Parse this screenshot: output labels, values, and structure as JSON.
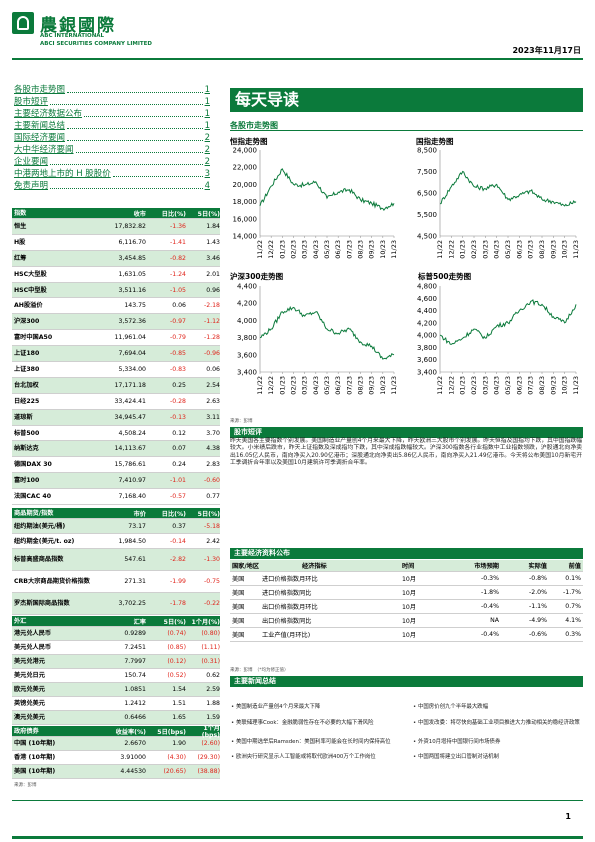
{
  "header": {
    "cn_name": "農銀國際",
    "en_line1": "ABC INTERNATIONAL",
    "en_line2": "ABCI SECURITIES COMPANY LIMITED",
    "date": "2023年11月17日"
  },
  "toc": [
    {
      "label": "各股市走势图",
      "page": "1"
    },
    {
      "label": "股市短评",
      "page": "1"
    },
    {
      "label": "主要经济数据公布",
      "page": "1"
    },
    {
      "label": "主要新闻总结",
      "page": "1"
    },
    {
      "label": "国际经济要闻",
      "page": "2"
    },
    {
      "label": "大中华经济要闻",
      "page": "2"
    },
    {
      "label": "企业要闻",
      "page": "2"
    },
    {
      "label": "中港两地上市的 H 股股价",
      "page": "3"
    },
    {
      "label": "免责声明",
      "page": "4"
    }
  ],
  "main_title": "每天导读",
  "charts_section": "各股市走势图",
  "charts_source": "来源：彭博",
  "commentary_title": "股市短评",
  "commentary": "昨天美国各主要指数个别发展。美国制造业产量创4个月来最大下降，昨天欧洲三大股市个别发展。昨天恒指及国指均下跌，其中国指跌幅较大。小米绩后跌市，昨天上证指数及深成指均下跌，其中深成指跌幅较大。沪深300指数各行业指数中工业指数领跌，沪股通北向净卖出16.05亿人民币，南向净买入20.90亿港币；深股通北向净卖出5.86亿人民币，南向净买入21.49亿港币。今天将公布美国10月新宅开工季调折合年率以及美国10月建筑许可季调折合年率。",
  "index_table": {
    "headers": [
      "指数",
      "收市",
      "日比(%)",
      "5日(%)"
    ],
    "rows": [
      [
        "恒生",
        "17,832.82",
        "-1.36",
        "1.84"
      ],
      [
        "H股",
        "6,116.70",
        "-1.41",
        "1.43"
      ],
      [
        "红筹",
        "3,454.85",
        "-0.82",
        "3.46"
      ],
      [
        "HSC大型股",
        "1,631.05",
        "-1.24",
        "2.01"
      ],
      [
        "HSC中型股",
        "3,511.16",
        "-1.05",
        "0.96"
      ],
      [
        "AH股溢价",
        "143.75",
        "0.06",
        "-2.18"
      ],
      [
        "沪深300",
        "3,572.36",
        "-0.97",
        "-1.12"
      ],
      [
        "富时中国A50",
        "11,961.04",
        "-0.79",
        "-1.28"
      ],
      [
        "上证180",
        "7,694.04",
        "-0.85",
        "-0.96"
      ],
      [
        "上证380",
        "5,334.00",
        "-0.83",
        "0.06"
      ],
      [
        "台北加权",
        "17,171.18",
        "0.25",
        "2.54"
      ],
      [
        "日经225",
        "33,424.41",
        "-0.28",
        "2.63"
      ],
      [
        "道琼斯",
        "34,945.47",
        "-0.13",
        "3.11"
      ],
      [
        "标普500",
        "4,508.24",
        "0.12",
        "3.70"
      ],
      [
        "纳斯达克",
        "14,113.67",
        "0.07",
        "4.38"
      ],
      [
        "德国DAX 30",
        "15,786.61",
        "0.24",
        "2.83"
      ],
      [
        "富时100",
        "7,410.97",
        "-1.01",
        "-0.60"
      ],
      [
        "法国CAC 40",
        "7,168.40",
        "-0.57",
        "0.77"
      ]
    ]
  },
  "commodity_table": {
    "headers": [
      "商品期货/指数",
      "市价",
      "日比(%)",
      "5日(%)"
    ],
    "rows": [
      [
        "纽约期油(美元/桶)",
        "73.17",
        "0.37",
        "-5.18"
      ],
      [
        "纽约期金(美元/t. oz)",
        "1,984.50",
        "-0.14",
        "2.42"
      ],
      [
        "标普高盛商品指数",
        "547.61",
        "-2.82",
        "-1.30"
      ],
      [
        "CRB大宗商品期货价格指数",
        "271.31",
        "-1.99",
        "-0.75"
      ],
      [
        "罗杰斯国际商品指数",
        "3,702.25",
        "-1.78",
        "-0.22"
      ]
    ]
  },
  "fx_table": {
    "headers": [
      "外汇",
      "汇率",
      "5日(%)",
      "1个月(%)"
    ],
    "rows": [
      [
        "港元兑人民币",
        "0.9289",
        "(0.74)",
        "(0.80)"
      ],
      [
        "美元兑人民币",
        "7.2451",
        "(0.85)",
        "(1.11)"
      ],
      [
        "美元兑港元",
        "7.7997",
        "(0.12)",
        "(0.31)"
      ],
      [
        "美元兑日元",
        "150.74",
        "(0.52)",
        "0.62"
      ],
      [
        "欧元兑美元",
        "1.0851",
        "1.54",
        "2.59"
      ],
      [
        "英镑兑美元",
        "1.2412",
        "1.51",
        "1.88"
      ],
      [
        "澳元兑美元",
        "0.6466",
        "1.65",
        "1.59"
      ]
    ]
  },
  "bond_table": {
    "headers": [
      "政府债券",
      "收益率(%)",
      "5日(bps)",
      "1个月(bps)"
    ],
    "rows": [
      [
        "中国 (10年期)",
        "2.6670",
        "1.90",
        "(2.60)"
      ],
      [
        "香港 (10年期)",
        "3.91000",
        "(4.30)",
        "(29.30)"
      ],
      [
        "美国 (10年期)",
        "4.44530",
        "(20.65)",
        "(38.88)"
      ]
    ]
  },
  "table_source": "来源：彭博",
  "econ": {
    "title": "主要经济资料公布",
    "headers": [
      "国家/地区",
      "经济指标",
      "时间",
      "市场预期",
      "实际值",
      "前值"
    ],
    "rows": [
      [
        "美国",
        "进口价格指数月环比",
        "10月",
        "-0.3%",
        "-0.8%",
        "0.1%"
      ],
      [
        "美国",
        "进口价格指数同比",
        "10月",
        "-1.8%",
        "-2.0%",
        "-1.7%"
      ],
      [
        "美国",
        "出口价格指数月环比",
        "10月",
        "-0.4%",
        "-1.1%",
        "0.7%"
      ],
      [
        "美国",
        "出口价格指数同比",
        "10月",
        "NA",
        "-4.9%",
        "4.1%"
      ],
      [
        "美国",
        "工业产值(月环比)",
        "10月",
        "-0.4%",
        "-0.6%",
        "0.3%"
      ]
    ],
    "source": "来源：彭博　（*均为修正值）"
  },
  "news": {
    "title": "主要新闻总结",
    "left": [
      "美国制造业产量创4个月来最大下降",
      "美联储理事Cook：金融脆弱性存在不必要的大幅下滑风险",
      "美国中期选举后Ramsden：美国利率可能会在长时间内保持高位",
      "欧洲央行研究显示人工智能或将取代欧洲400万个工作岗位"
    ],
    "right": [
      "中国房价创九个半年最大跌幅",
      "中国发改委：将尽快向基础工业项目推进大力推动相关的稳经济政策",
      "外资10月增持中国银行间市场债券",
      "中国两国将建立出口管制对话机制"
    ]
  },
  "page_number": "1",
  "chart_data": [
    {
      "type": "line",
      "title": "恒指走势图",
      "x": [
        "11/22",
        "12/22",
        "01/23",
        "02/23",
        "03/23",
        "04/23",
        "05/23",
        "06/23",
        "07/23",
        "08/23",
        "09/23",
        "10/23",
        "11/23"
      ],
      "series": [
        {
          "values": [
            17500,
            19800,
            21800,
            20000,
            19900,
            20300,
            18400,
            19100,
            19400,
            18200,
            17800,
            17200,
            17800
          ]
        }
      ],
      "ylim": [
        14000,
        24000
      ],
      "yticks": [
        14000,
        16000,
        18000,
        20000,
        22000,
        24000
      ],
      "yticklabels": [
        "14,000",
        "16,000",
        "18,000",
        "20,000",
        "22,000",
        "24,000"
      ]
    },
    {
      "type": "line",
      "title": "国指走势图",
      "x": [
        "11/22",
        "12/22",
        "01/23",
        "02/23",
        "03/23",
        "04/23",
        "05/23",
        "06/23",
        "07/23",
        "08/23",
        "09/23",
        "10/23",
        "11/23"
      ],
      "series": [
        {
          "values": [
            6000,
            6800,
            7500,
            6800,
            6700,
            6900,
            6200,
            6400,
            6600,
            6200,
            6100,
            5900,
            6100
          ]
        }
      ],
      "ylim": [
        4500,
        8500
      ],
      "yticks": [
        4500,
        5500,
        6500,
        7500,
        8500
      ],
      "yticklabels": [
        "4,500",
        "5,500",
        "6,500",
        "7,500",
        "8,500"
      ]
    },
    {
      "type": "line",
      "title": "沪深300走势图",
      "x": [
        "11/22",
        "12/22",
        "01/23",
        "02/23",
        "03/23",
        "04/23",
        "05/23",
        "06/23",
        "07/23",
        "08/23",
        "09/23",
        "10/23",
        "11/23"
      ],
      "series": [
        {
          "values": [
            3800,
            3900,
            4100,
            4150,
            4050,
            4100,
            3900,
            3850,
            3900,
            3750,
            3700,
            3550,
            3600
          ]
        }
      ],
      "ylim": [
        3400,
        4400
      ],
      "yticks": [
        3400,
        3600,
        3800,
        4000,
        4200,
        4400
      ],
      "yticklabels": [
        "3,400",
        "3,600",
        "3,800",
        "4,000",
        "4,200",
        "4,400"
      ]
    },
    {
      "type": "line",
      "title": "标普500走势图",
      "x": [
        "11/22",
        "12/22",
        "01/23",
        "02/23",
        "03/23",
        "04/23",
        "05/23",
        "06/23",
        "07/23",
        "08/23",
        "09/23",
        "10/23",
        "11/23"
      ],
      "series": [
        {
          "values": [
            4000,
            3850,
            3950,
            4100,
            3950,
            4150,
            4200,
            4400,
            4550,
            4500,
            4300,
            4200,
            4500
          ]
        }
      ],
      "ylim": [
        3400,
        4800
      ],
      "yticks": [
        3400,
        3600,
        3800,
        4000,
        4200,
        4400,
        4600,
        4800
      ],
      "yticklabels": [
        "3,400",
        "3,600",
        "3,800",
        "4,000",
        "4,200",
        "4,400",
        "4,600",
        "4,800"
      ]
    }
  ]
}
